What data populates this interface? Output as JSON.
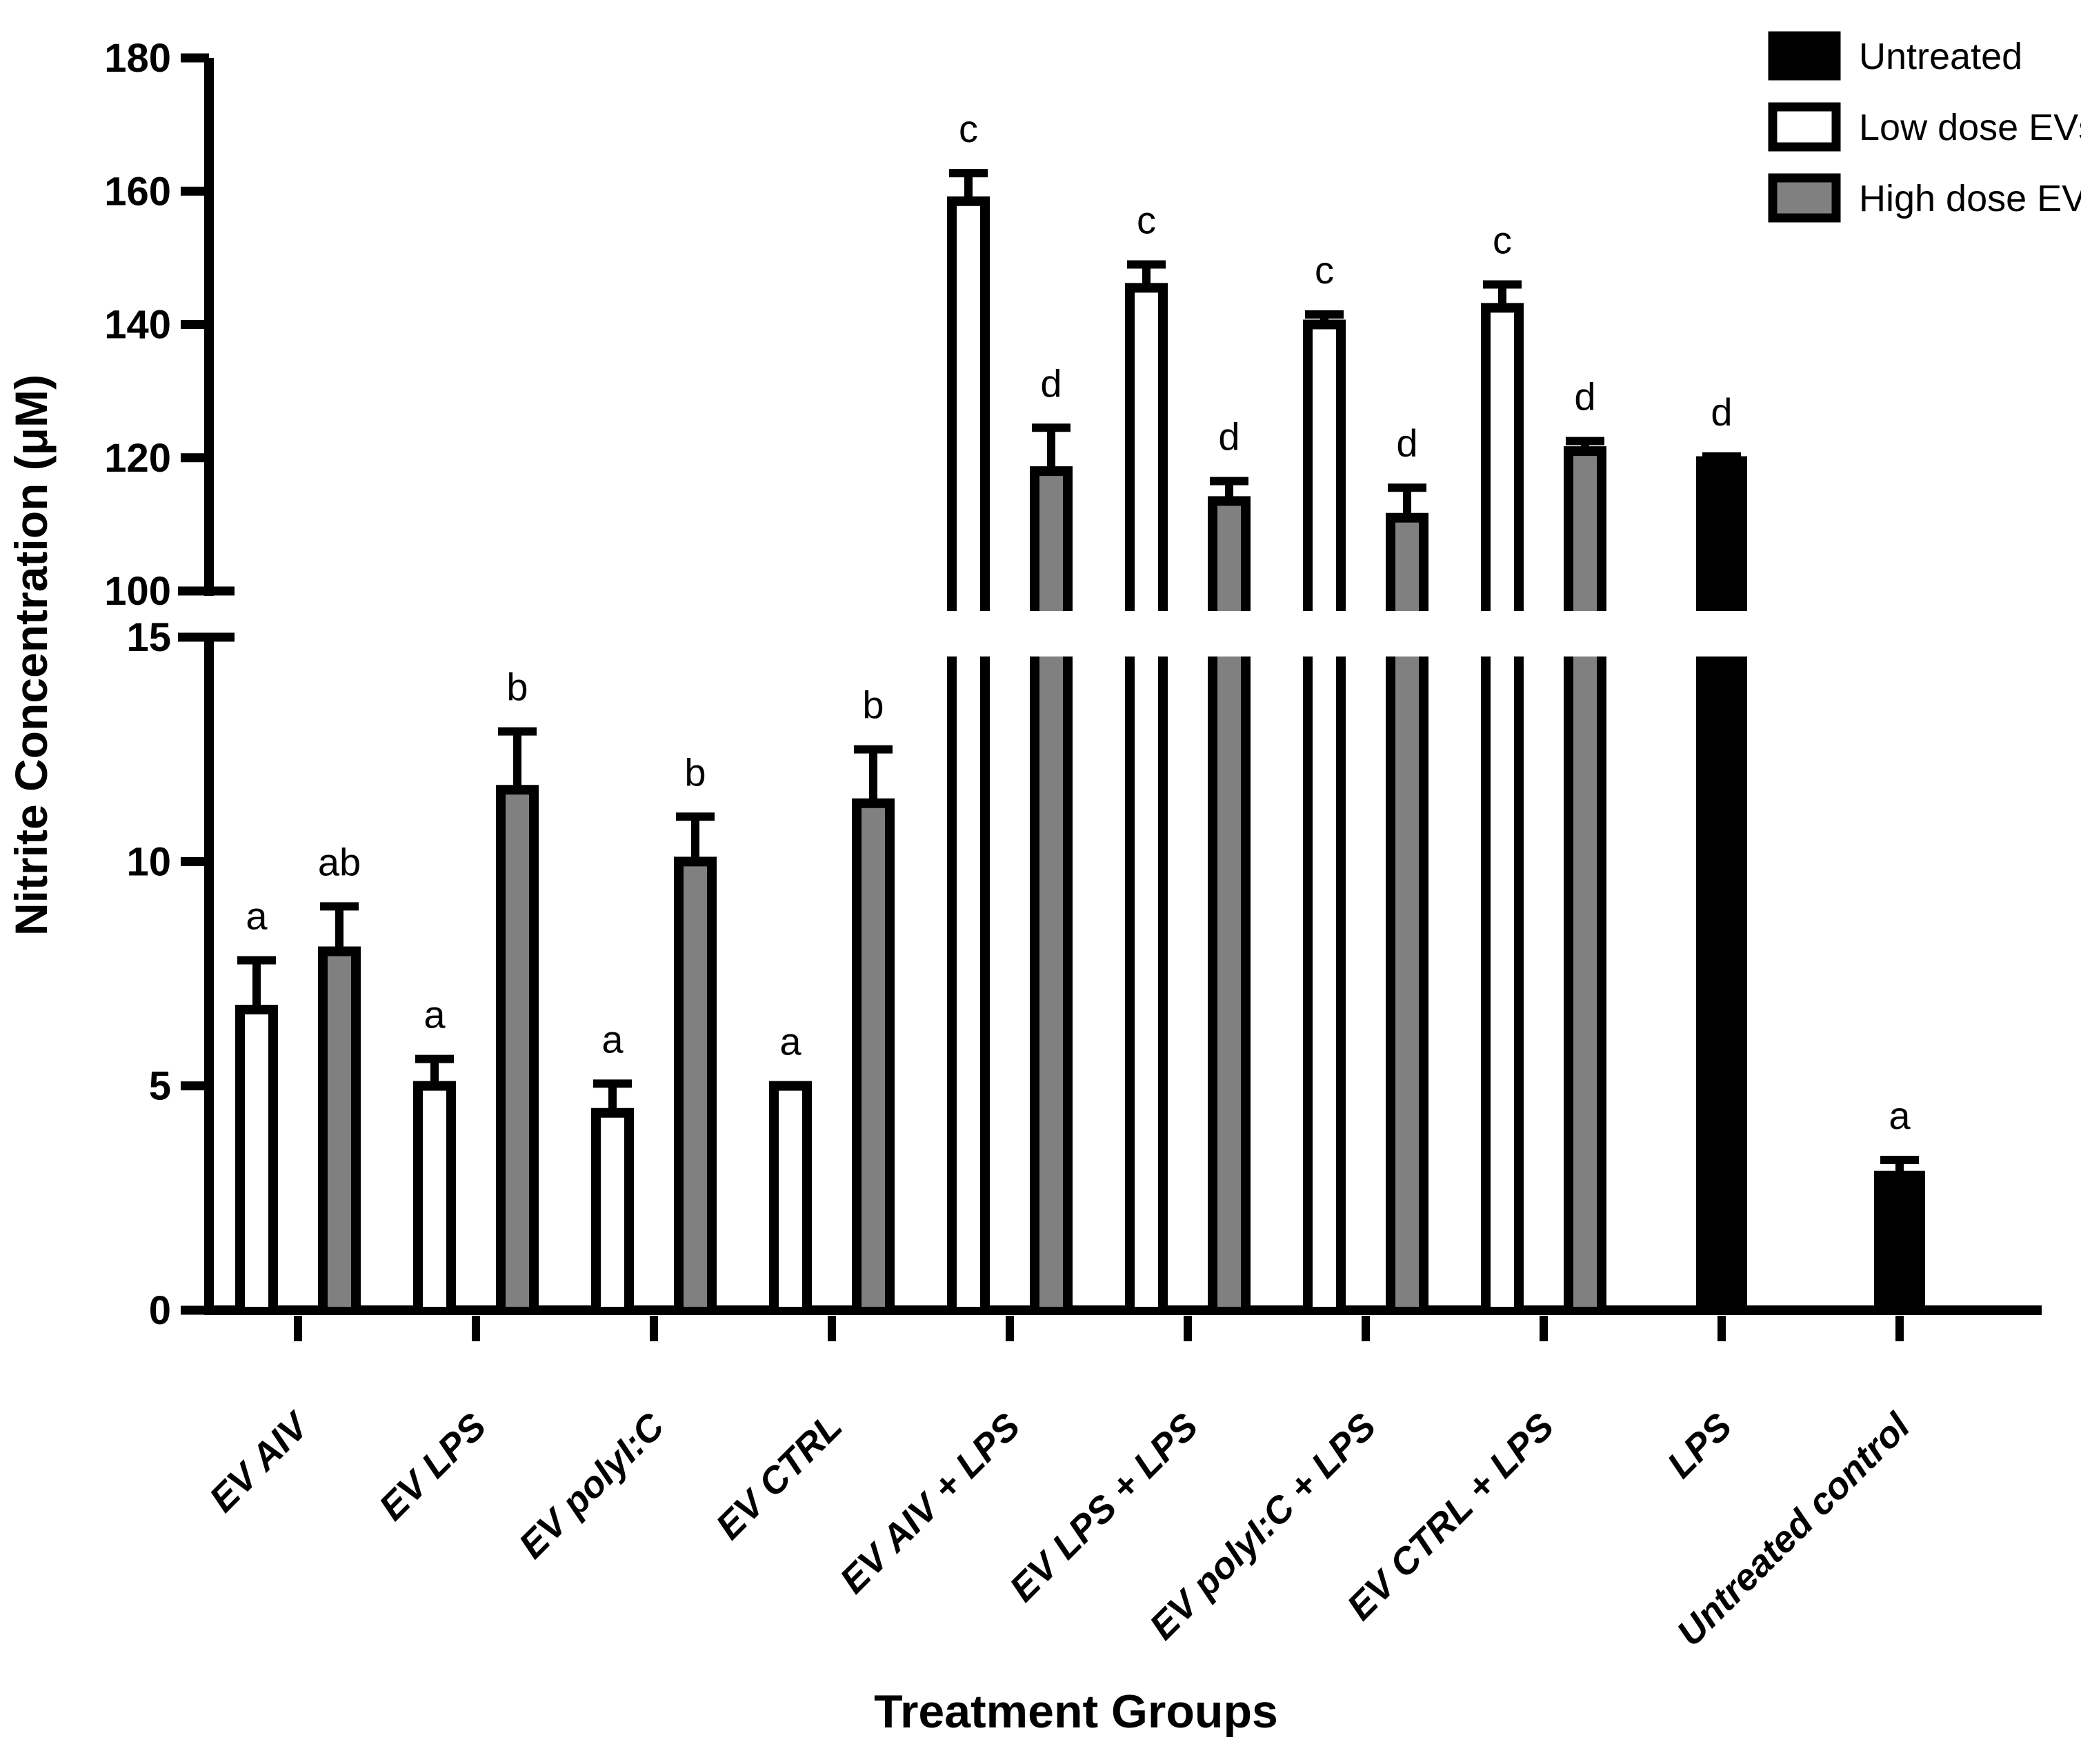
{
  "figure_title": "",
  "colors": {
    "foreground": "#000000",
    "background": "#ffffff",
    "gray_fill": "#808080"
  },
  "chart_data": {
    "type": "bar",
    "title": "",
    "xlabel": "Treatment Groups",
    "ylabel": "Nitrite Concentration (μM)",
    "grid": false,
    "legend_position": "top-right",
    "axis_break": {
      "lower_range": [
        0,
        15
      ],
      "upper_range": [
        100,
        180
      ],
      "lower_ticks": [
        0,
        5,
        10,
        15
      ],
      "upper_ticks": [
        100,
        120,
        140,
        160,
        180
      ]
    },
    "legend": [
      {
        "label": "Untreated",
        "fill": "#000000"
      },
      {
        "label": "Low dose EVs",
        "fill": "#ffffff"
      },
      {
        "label": "High dose EVs",
        "fill": "#808080"
      }
    ],
    "series_names": [
      "Low dose EVs",
      "High dose EVs"
    ],
    "groups": [
      {
        "category": "EV AIV",
        "bars": [
          {
            "series": "Low dose EVs",
            "value": 6.7,
            "error": 1.1,
            "letter": "a"
          },
          {
            "series": "High dose EVs",
            "value": 8.0,
            "error": 1.0,
            "letter": "ab"
          }
        ]
      },
      {
        "category": "EV LPS",
        "bars": [
          {
            "series": "Low dose EVs",
            "value": 5.0,
            "error": 0.6,
            "letter": "a"
          },
          {
            "series": "High dose EVs",
            "value": 11.6,
            "error": 1.3,
            "letter": "b"
          }
        ]
      },
      {
        "category": "EV polyI:C",
        "bars": [
          {
            "series": "Low dose EVs",
            "value": 4.4,
            "error": 0.65,
            "letter": "a"
          },
          {
            "series": "High dose EVs",
            "value": 10.0,
            "error": 1.0,
            "letter": "b"
          }
        ]
      },
      {
        "category": "EV CTRL",
        "bars": [
          {
            "series": "Low dose EVs",
            "value": 5.0,
            "error": 0,
            "letter": "a"
          },
          {
            "series": "High dose EVs",
            "value": 11.3,
            "error": 1.2,
            "letter": "b"
          }
        ]
      },
      {
        "category": "EV AIV + LPS",
        "bars": [
          {
            "series": "Low dose EVs",
            "value": 158.5,
            "error": 4.2,
            "letter": "c"
          },
          {
            "series": "High dose EVs",
            "value": 118.0,
            "error": 6.5,
            "letter": "d"
          }
        ]
      },
      {
        "category": "EV LPS + LPS",
        "bars": [
          {
            "series": "Low dose EVs",
            "value": 145.5,
            "error": 3.5,
            "letter": "c"
          },
          {
            "series": "High dose EVs",
            "value": 113.5,
            "error": 3.0,
            "letter": "d"
          }
        ]
      },
      {
        "category": "EV polyI:C + LPS",
        "bars": [
          {
            "series": "Low dose EVs",
            "value": 140.0,
            "error": 1.5,
            "letter": "c"
          },
          {
            "series": "High dose EVs",
            "value": 111.0,
            "error": 4.5,
            "letter": "d"
          }
        ]
      },
      {
        "category": "EV CTRL + LPS",
        "bars": [
          {
            "series": "Low dose EVs",
            "value": 142.5,
            "error": 3.5,
            "letter": "c"
          },
          {
            "series": "High dose EVs",
            "value": 121.0,
            "error": 1.5,
            "letter": "d"
          }
        ]
      },
      {
        "category": "LPS",
        "bars": [
          {
            "series": "Untreated",
            "value": 119.5,
            "error": 0.7,
            "letter": "d"
          }
        ]
      },
      {
        "category": "Untreated control",
        "bars": [
          {
            "series": "Untreated",
            "value": 3.0,
            "error": 0.35,
            "letter": "a"
          }
        ]
      }
    ]
  }
}
